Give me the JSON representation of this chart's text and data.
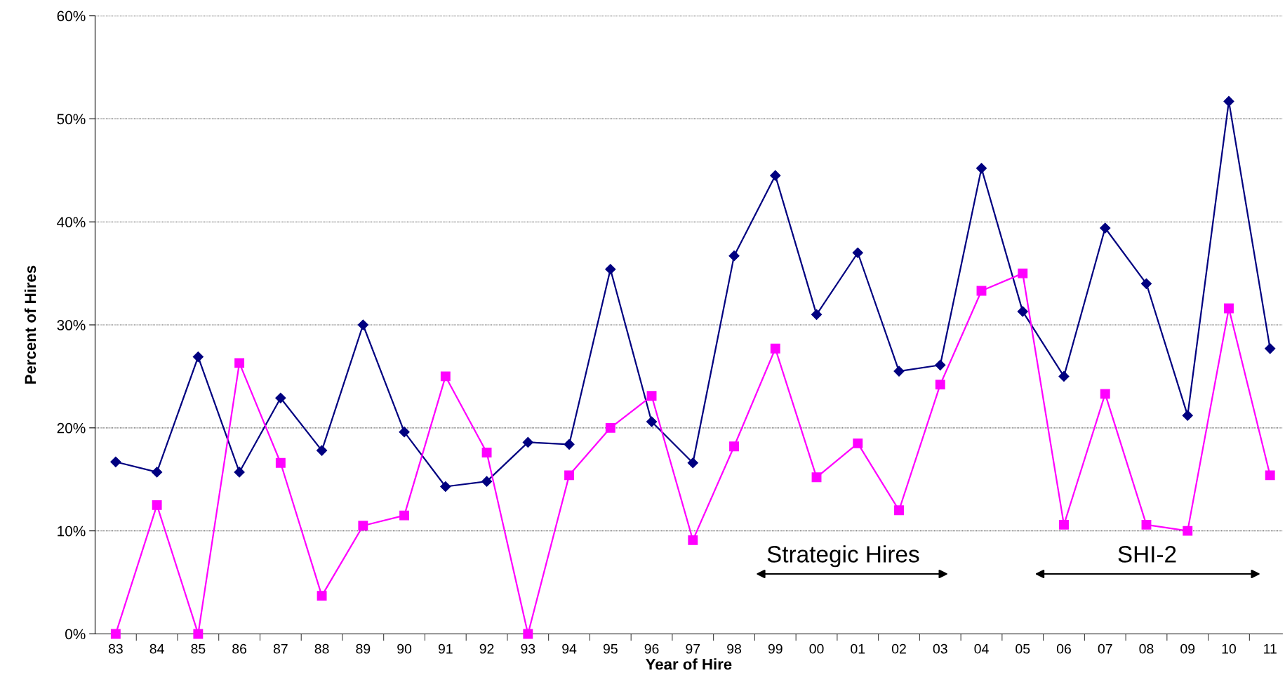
{
  "chart_data": {
    "type": "line",
    "xlabel": "Year of Hire",
    "ylabel": "Percent of Hires",
    "categories": [
      "83",
      "84",
      "85",
      "86",
      "87",
      "88",
      "89",
      "90",
      "91",
      "92",
      "93",
      "94",
      "95",
      "96",
      "97",
      "98",
      "99",
      "00",
      "01",
      "02",
      "03",
      "04",
      "05",
      "06",
      "07",
      "08",
      "09",
      "10",
      "11"
    ],
    "series": [
      {
        "color": "#000080",
        "marker": "diamond",
        "values": [
          16.7,
          15.7,
          26.9,
          15.7,
          22.9,
          17.8,
          30.0,
          19.6,
          14.3,
          14.8,
          18.6,
          18.4,
          35.4,
          20.6,
          16.6,
          36.7,
          44.5,
          31.0,
          37.0,
          25.5,
          26.1,
          45.2,
          31.3,
          25.0,
          39.4,
          34.0,
          21.2,
          51.7,
          27.7
        ]
      },
      {
        "color": "#ff00ff",
        "marker": "square",
        "values": [
          0,
          12.5,
          0,
          26.3,
          16.6,
          3.7,
          10.5,
          11.5,
          25.0,
          17.6,
          0,
          15.4,
          20.0,
          23.1,
          9.1,
          18.2,
          27.7,
          15.2,
          18.5,
          12.0,
          24.2,
          33.3,
          35.0,
          10.6,
          23.3,
          10.6,
          10.0,
          31.6,
          15.4
        ]
      }
    ],
    "ylim": [
      0,
      60
    ],
    "yticks": [
      {
        "value": 0,
        "label": "0%"
      },
      {
        "value": 10,
        "label": "10%"
      },
      {
        "value": 20,
        "label": "20%"
      },
      {
        "value": 30,
        "label": "30%"
      },
      {
        "value": 40,
        "label": "40%"
      },
      {
        "value": 50,
        "label": "50%"
      },
      {
        "value": 60,
        "label": "60%"
      }
    ],
    "grid": "y",
    "legend": false,
    "line_style": "solid",
    "annotations": [
      "Strategic Hires",
      "SHI-2"
    ]
  }
}
